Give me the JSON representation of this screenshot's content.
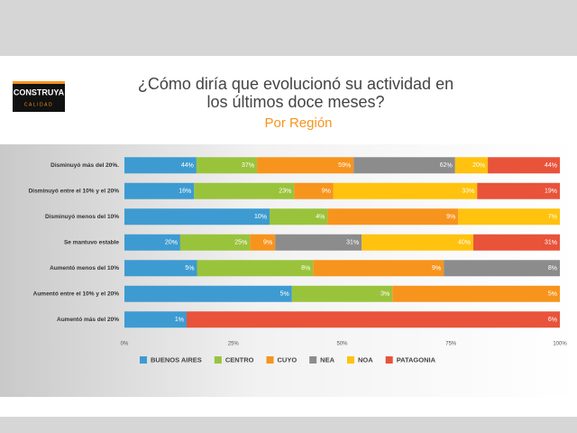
{
  "logo": {
    "name": "CONSTRUYA",
    "tagline": "CALIDAD"
  },
  "chart_data": {
    "type": "bar",
    "orientation": "horizontal",
    "stacking": "percent",
    "title": [
      "¿Cómo diría que evolucionó su actividad en",
      "los últimos doce meses?"
    ],
    "subtitle": "Por Región",
    "categories": [
      "Disminuyó más del 20%.",
      "Disminuyó entre el 10% y el 20%",
      "Disminuyó menos del 10%",
      "Se mantuvo estable",
      "Aumentó menos del 10%",
      "Aumentó entre el 10% y el 20%",
      "Aumentó más del 20%"
    ],
    "series": [
      {
        "name": "BUENOS AIRES",
        "color": "#3d9bd1",
        "values": [
          44,
          16,
          10,
          20,
          5,
          5,
          1
        ]
      },
      {
        "name": "CENTRO",
        "color": "#9ac33c",
        "values": [
          37,
          23,
          4,
          25,
          8,
          3,
          null
        ]
      },
      {
        "name": "CUYO",
        "color": "#f7941d",
        "values": [
          59,
          9,
          9,
          9,
          9,
          5,
          null
        ]
      },
      {
        "name": "NEA",
        "color": "#8c8c8c",
        "values": [
          62,
          null,
          null,
          31,
          8,
          null,
          null
        ]
      },
      {
        "name": "NOA",
        "color": "#ffc20e",
        "values": [
          20,
          33,
          7,
          40,
          null,
          null,
          null
        ]
      },
      {
        "name": "PATAGONIA",
        "color": "#e8533a",
        "values": [
          44,
          19,
          null,
          31,
          null,
          null,
          6
        ]
      }
    ],
    "xlim": [
      0,
      100
    ],
    "xticks": [
      {
        "value": 0,
        "label": "0%"
      },
      {
        "value": 25,
        "label": "25%"
      },
      {
        "value": 50,
        "label": "50%"
      },
      {
        "value": 75,
        "label": "75%"
      },
      {
        "value": 100,
        "label": "100%"
      }
    ],
    "legend": "bottom"
  }
}
